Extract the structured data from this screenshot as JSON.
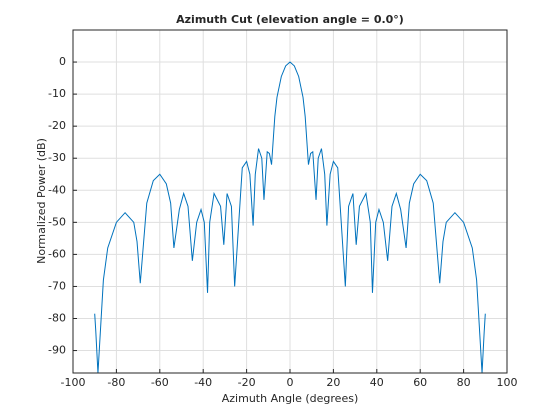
{
  "chart_data": {
    "type": "line",
    "title": "Azimuth Cut (elevation angle = 0.0°)",
    "x_label": "Azimuth Angle (degrees)",
    "y_label": "Normalized Power (dB)",
    "xlim": [
      -100,
      100
    ],
    "ylim": [
      -97,
      10
    ],
    "xticks": [
      -100,
      -80,
      -60,
      -40,
      -20,
      0,
      20,
      40,
      60,
      80,
      100
    ],
    "yticks": [
      -90,
      -80,
      -70,
      -60,
      -50,
      -40,
      -30,
      -20,
      -10,
      0
    ],
    "grid": true,
    "series": [
      {
        "color": "#0072bd",
        "x": [
          -90,
          -89.5,
          -88.5,
          -86,
          -84,
          -80,
          -76,
          -72,
          -70.5,
          -69,
          -66,
          -63,
          -60,
          -57,
          -55,
          -53.5,
          -51,
          -49,
          -47,
          -45,
          -43,
          -41,
          -39.5,
          -38,
          -37,
          -35,
          -32,
          -30.5,
          -29,
          -27,
          -25.5,
          -22,
          -20,
          -18.5,
          -17,
          -16,
          -14.5,
          -13,
          -12,
          -10.5,
          -9.5,
          -8.5,
          -7,
          -6,
          -4,
          -2,
          0,
          2,
          4,
          6,
          7,
          8.5,
          9.5,
          10.5,
          12,
          13,
          14.5,
          16,
          17,
          18.5,
          20,
          22,
          25.5,
          27,
          29,
          30.5,
          32,
          35,
          37,
          38,
          39.5,
          41,
          43,
          45,
          47,
          49,
          51,
          53.5,
          55,
          57,
          60,
          63,
          66,
          69,
          70.5,
          72,
          76,
          80,
          84,
          86,
          88.5,
          89.5,
          90
        ],
        "values": [
          -78.5,
          -84,
          -97,
          -68,
          -58,
          -50,
          -47,
          -50,
          -56,
          -69,
          -44,
          -37,
          -35,
          -38,
          -44,
          -58,
          -46,
          -41,
          -45,
          -62,
          -50,
          -46,
          -50,
          -72,
          -50,
          -41,
          -45,
          -57,
          -41,
          -45,
          -70,
          -33,
          -31,
          -35,
          -51,
          -35,
          -27,
          -30,
          -43,
          -28,
          -28.5,
          -32,
          -17,
          -11,
          -4.5,
          -1.2,
          0,
          -1.2,
          -4.5,
          -11,
          -17,
          -32,
          -28.5,
          -28,
          -43,
          -30,
          -27,
          -35,
          -51,
          -35,
          -31,
          -33,
          -70,
          -45,
          -41,
          -57,
          -45,
          -41,
          -50,
          -72,
          -50,
          -46,
          -50,
          -62,
          -45,
          -41,
          -46,
          -58,
          -44,
          -38,
          -35,
          -37,
          -44,
          -69,
          -56,
          -50,
          -47,
          -50,
          -58,
          -68,
          -97,
          -84,
          -78.5
        ]
      }
    ]
  }
}
